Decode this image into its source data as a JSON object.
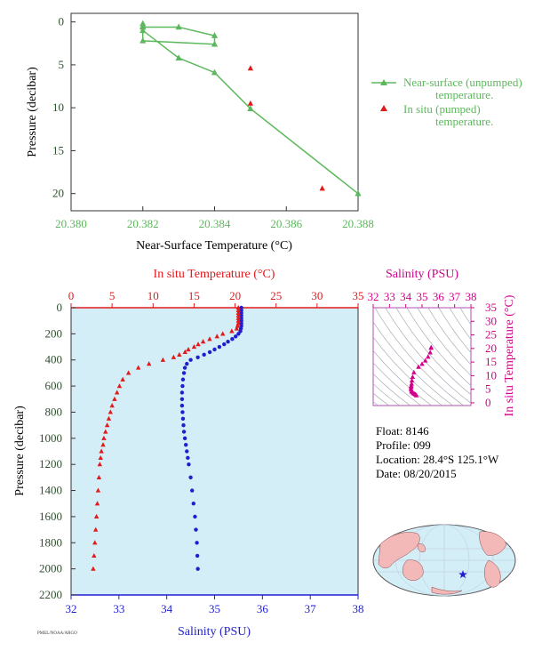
{
  "colors": {
    "green": "#5cb85c",
    "red": "#e31a1c",
    "blue": "#1f1fd0",
    "magenta": "#d4008b",
    "panel_bg": "#d4eef7",
    "axis_dark": "#2f4f2f"
  },
  "info": {
    "float": "Float:  8146",
    "profile": "Profile:  099",
    "location": "Location:  28.4°S  125.1°W",
    "date": "Date:  08/20/2015",
    "footer": "PMEL/NOAA/ARGO"
  },
  "chart_data": [
    {
      "type": "line",
      "xlabel": "Near-Surface Temperature (°C)",
      "ylabel": "Pressure (decibar)",
      "xlim": [
        20.38,
        20.388
      ],
      "ylim": [
        22,
        -1
      ],
      "x_ticks": [
        "20.380",
        "20.382",
        "20.384",
        "20.386",
        "20.388"
      ],
      "y_ticks": [
        "0",
        "5",
        "10",
        "15",
        "20"
      ],
      "legend_position": "right",
      "series": [
        {
          "name": "Near-surface (unpumped) temperature.",
          "style": "line+triangle",
          "points": [
            [
              20.382,
              0.2
            ],
            [
              20.382,
              0.6
            ],
            [
              20.383,
              0.6
            ],
            [
              20.384,
              1.6
            ],
            [
              20.384,
              2.6
            ],
            [
              20.382,
              2.2
            ],
            [
              20.382,
              0.5
            ],
            [
              20.382,
              1.0
            ],
            [
              20.383,
              4.2
            ],
            [
              20.384,
              5.9
            ],
            [
              20.385,
              10.1
            ],
            [
              20.388,
              20.0
            ]
          ]
        },
        {
          "name": "In situ (pumped) temperature.",
          "style": "triangle",
          "points": [
            [
              20.385,
              5.4
            ],
            [
              20.385,
              9.5
            ],
            [
              20.387,
              19.4
            ]
          ]
        }
      ]
    },
    {
      "type": "scatter",
      "ylabel": "Pressure (decibar)",
      "top_axis_label": "In situ Temperature (°C)",
      "bottom_axis_label": "Salinity (PSU)",
      "temperature_range": [
        0,
        35
      ],
      "salinity_range": [
        32,
        38
      ],
      "pressure_range": [
        0,
        2200
      ],
      "temperature_ticks": [
        "0",
        "5",
        "10",
        "15",
        "20",
        "25",
        "30",
        "35"
      ],
      "salinity_ticks": [
        "32",
        "33",
        "34",
        "35",
        "36",
        "37",
        "38"
      ],
      "pressure_ticks": [
        "0",
        "200",
        "400",
        "600",
        "800",
        "1000",
        "1200",
        "1400",
        "1600",
        "1800",
        "2000",
        "2200"
      ],
      "temperature_profile": [
        [
          20.4,
          0
        ],
        [
          20.4,
          20
        ],
        [
          20.4,
          40
        ],
        [
          20.4,
          60
        ],
        [
          20.4,
          80
        ],
        [
          20.4,
          100
        ],
        [
          20.4,
          120
        ],
        [
          20.3,
          140
        ],
        [
          20.2,
          160
        ],
        [
          19.6,
          180
        ],
        [
          18.5,
          200
        ],
        [
          17.8,
          220
        ],
        [
          16.9,
          240
        ],
        [
          16.1,
          260
        ],
        [
          15.5,
          280
        ],
        [
          15.0,
          300
        ],
        [
          14.3,
          320
        ],
        [
          13.9,
          340
        ],
        [
          13.2,
          360
        ],
        [
          12.5,
          380
        ],
        [
          11.2,
          400
        ],
        [
          9.5,
          430
        ],
        [
          8.2,
          460
        ],
        [
          7.0,
          500
        ],
        [
          6.3,
          550
        ],
        [
          5.9,
          600
        ],
        [
          5.6,
          650
        ],
        [
          5.3,
          700
        ],
        [
          5.0,
          750
        ],
        [
          4.8,
          800
        ],
        [
          4.6,
          850
        ],
        [
          4.4,
          900
        ],
        [
          4.2,
          950
        ],
        [
          4.0,
          1000
        ],
        [
          3.9,
          1050
        ],
        [
          3.7,
          1100
        ],
        [
          3.6,
          1150
        ],
        [
          3.5,
          1200
        ],
        [
          3.4,
          1300
        ],
        [
          3.3,
          1400
        ],
        [
          3.2,
          1500
        ],
        [
          3.1,
          1600
        ],
        [
          3.0,
          1700
        ],
        [
          2.9,
          1800
        ],
        [
          2.8,
          1900
        ],
        [
          2.7,
          2000
        ]
      ],
      "salinity_profile": [
        [
          35.56,
          0
        ],
        [
          35.56,
          20
        ],
        [
          35.56,
          40
        ],
        [
          35.56,
          60
        ],
        [
          35.56,
          80
        ],
        [
          35.56,
          100
        ],
        [
          35.56,
          120
        ],
        [
          35.56,
          140
        ],
        [
          35.55,
          160
        ],
        [
          35.54,
          180
        ],
        [
          35.5,
          200
        ],
        [
          35.44,
          220
        ],
        [
          35.37,
          240
        ],
        [
          35.28,
          260
        ],
        [
          35.2,
          280
        ],
        [
          35.1,
          300
        ],
        [
          35.0,
          320
        ],
        [
          34.9,
          340
        ],
        [
          34.78,
          360
        ],
        [
          34.65,
          380
        ],
        [
          34.5,
          400
        ],
        [
          34.42,
          430
        ],
        [
          34.38,
          460
        ],
        [
          34.36,
          500
        ],
        [
          34.34,
          550
        ],
        [
          34.33,
          600
        ],
        [
          34.32,
          650
        ],
        [
          34.32,
          700
        ],
        [
          34.32,
          750
        ],
        [
          34.33,
          800
        ],
        [
          34.34,
          850
        ],
        [
          34.35,
          900
        ],
        [
          34.36,
          950
        ],
        [
          34.38,
          1000
        ],
        [
          34.4,
          1050
        ],
        [
          34.42,
          1100
        ],
        [
          34.44,
          1150
        ],
        [
          34.46,
          1200
        ],
        [
          34.5,
          1300
        ],
        [
          34.53,
          1400
        ],
        [
          34.56,
          1500
        ],
        [
          34.59,
          1600
        ],
        [
          34.61,
          1700
        ],
        [
          34.63,
          1800
        ],
        [
          34.64,
          1900
        ],
        [
          34.65,
          2000
        ]
      ]
    },
    {
      "type": "scatter",
      "xlabel": "Salinity (PSU)",
      "ylabel": "In situ Temperature (°C)",
      "xlim": [
        32,
        38
      ],
      "ylim": [
        -1,
        35
      ],
      "x_ticks": [
        "32",
        "33",
        "34",
        "35",
        "36",
        "37",
        "38"
      ],
      "y_ticks": [
        "0",
        "5",
        "10",
        "15",
        "20",
        "25",
        "30",
        "35"
      ],
      "points": [
        [
          35.56,
          20.4
        ],
        [
          35.55,
          20.2
        ],
        [
          35.5,
          18.5
        ],
        [
          35.37,
          16.9
        ],
        [
          35.2,
          15.5
        ],
        [
          35.0,
          14.3
        ],
        [
          34.78,
          13.2
        ],
        [
          34.5,
          11.2
        ],
        [
          34.42,
          9.5
        ],
        [
          34.38,
          8.2
        ],
        [
          34.36,
          7.0
        ],
        [
          34.34,
          6.3
        ],
        [
          34.33,
          5.9
        ],
        [
          34.32,
          5.3
        ],
        [
          34.33,
          4.8
        ],
        [
          34.36,
          4.2
        ],
        [
          34.4,
          3.9
        ],
        [
          34.46,
          3.5
        ],
        [
          34.53,
          3.3
        ],
        [
          34.59,
          3.1
        ],
        [
          34.63,
          2.9
        ],
        [
          34.65,
          2.7
        ]
      ]
    }
  ]
}
